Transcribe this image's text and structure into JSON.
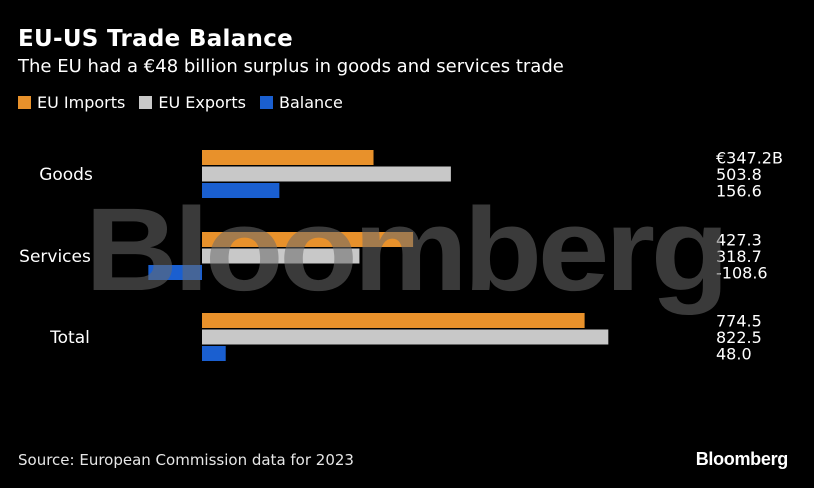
{
  "header": {
    "title": "EU-US Trade Balance",
    "subtitle": "The EU had a €48 billion surplus in goods and services trade"
  },
  "footer": {
    "source": "Source: European Commission data for 2023",
    "brand": "Bloomberg"
  },
  "watermark": "Bloomberg",
  "colors": {
    "eu_imports": "#e8912b",
    "eu_exports": "#c8c8c8",
    "balance": "#1a5fd0",
    "background": "#000000",
    "watermark": "#6a6a6a"
  },
  "chart_data": {
    "type": "bar",
    "orientation": "horizontal",
    "categories": [
      "Goods",
      "Services",
      "Total"
    ],
    "series": [
      {
        "name": "EU Imports",
        "values": [
          347.2,
          427.3,
          774.5
        ],
        "labels": [
          "€347.2B",
          "427.3",
          "774.5"
        ]
      },
      {
        "name": "EU Exports",
        "values": [
          503.8,
          318.7,
          822.5
        ],
        "labels": [
          "503.8",
          "318.7",
          "822.5"
        ]
      },
      {
        "name": "Balance",
        "values": [
          156.6,
          -108.6,
          48.0
        ],
        "labels": [
          "156.6",
          "-108.6",
          "48.0"
        ]
      }
    ],
    "legend": "top-left",
    "grid": false
  }
}
